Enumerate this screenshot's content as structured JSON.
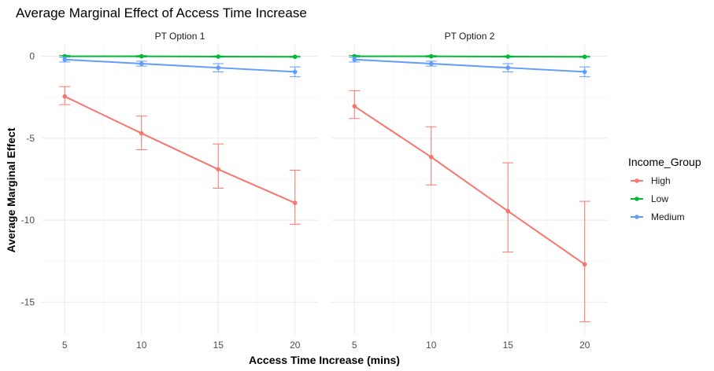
{
  "chart_data": {
    "type": "line",
    "title": "Average Marginal Effect of Access Time Increase",
    "xlabel": "Access Time Increase (mins)",
    "ylabel": "Average Marginal Effect",
    "x": [
      5,
      10,
      15,
      20
    ],
    "xlim": [
      3.5,
      21.5
    ],
    "ylim": [
      -17,
      0.7
    ],
    "xticks": [
      5,
      10,
      15,
      20
    ],
    "yticks": [
      0,
      -5,
      -10,
      -15
    ],
    "grid": true,
    "legend": {
      "title": "Income_Group",
      "placement": "right",
      "entries": [
        "High",
        "Low",
        "Medium"
      ]
    },
    "colors": {
      "High": "#F8766D",
      "Low": "#00BA38",
      "Medium": "#619CFF"
    },
    "panels": [
      {
        "name": "PT Option 1",
        "series": [
          {
            "name": "High",
            "values": [
              -2.45,
              -4.7,
              -6.9,
              -8.95
            ],
            "lower": [
              -2.95,
              -5.7,
              -8.05,
              -10.25
            ],
            "upper": [
              -1.85,
              -3.65,
              -5.35,
              -6.95
            ]
          },
          {
            "name": "Low",
            "values": [
              0.0,
              0.0,
              -0.02,
              -0.03
            ],
            "lower": [
              -0.05,
              -0.04,
              -0.05,
              -0.06
            ],
            "upper": [
              0.05,
              0.04,
              0.02,
              0.0
            ]
          },
          {
            "name": "Medium",
            "values": [
              -0.2,
              -0.45,
              -0.7,
              -0.95
            ],
            "lower": [
              -0.35,
              -0.6,
              -0.95,
              -1.25
            ],
            "upper": [
              -0.05,
              -0.3,
              -0.45,
              -0.65
            ]
          }
        ]
      },
      {
        "name": "PT Option 2",
        "series": [
          {
            "name": "High",
            "values": [
              -3.05,
              -6.15,
              -9.45,
              -12.7
            ],
            "lower": [
              -3.8,
              -7.85,
              -11.95,
              -16.2
            ],
            "upper": [
              -2.1,
              -4.3,
              -6.5,
              -8.85
            ]
          },
          {
            "name": "Low",
            "values": [
              0.0,
              0.0,
              -0.02,
              -0.03
            ],
            "lower": [
              -0.05,
              -0.04,
              -0.05,
              -0.06
            ],
            "upper": [
              0.05,
              0.04,
              0.02,
              0.0
            ]
          },
          {
            "name": "Medium",
            "values": [
              -0.2,
              -0.45,
              -0.7,
              -0.95
            ],
            "lower": [
              -0.35,
              -0.6,
              -0.95,
              -1.25
            ],
            "upper": [
              -0.05,
              -0.3,
              -0.45,
              -0.65
            ]
          }
        ]
      }
    ]
  }
}
